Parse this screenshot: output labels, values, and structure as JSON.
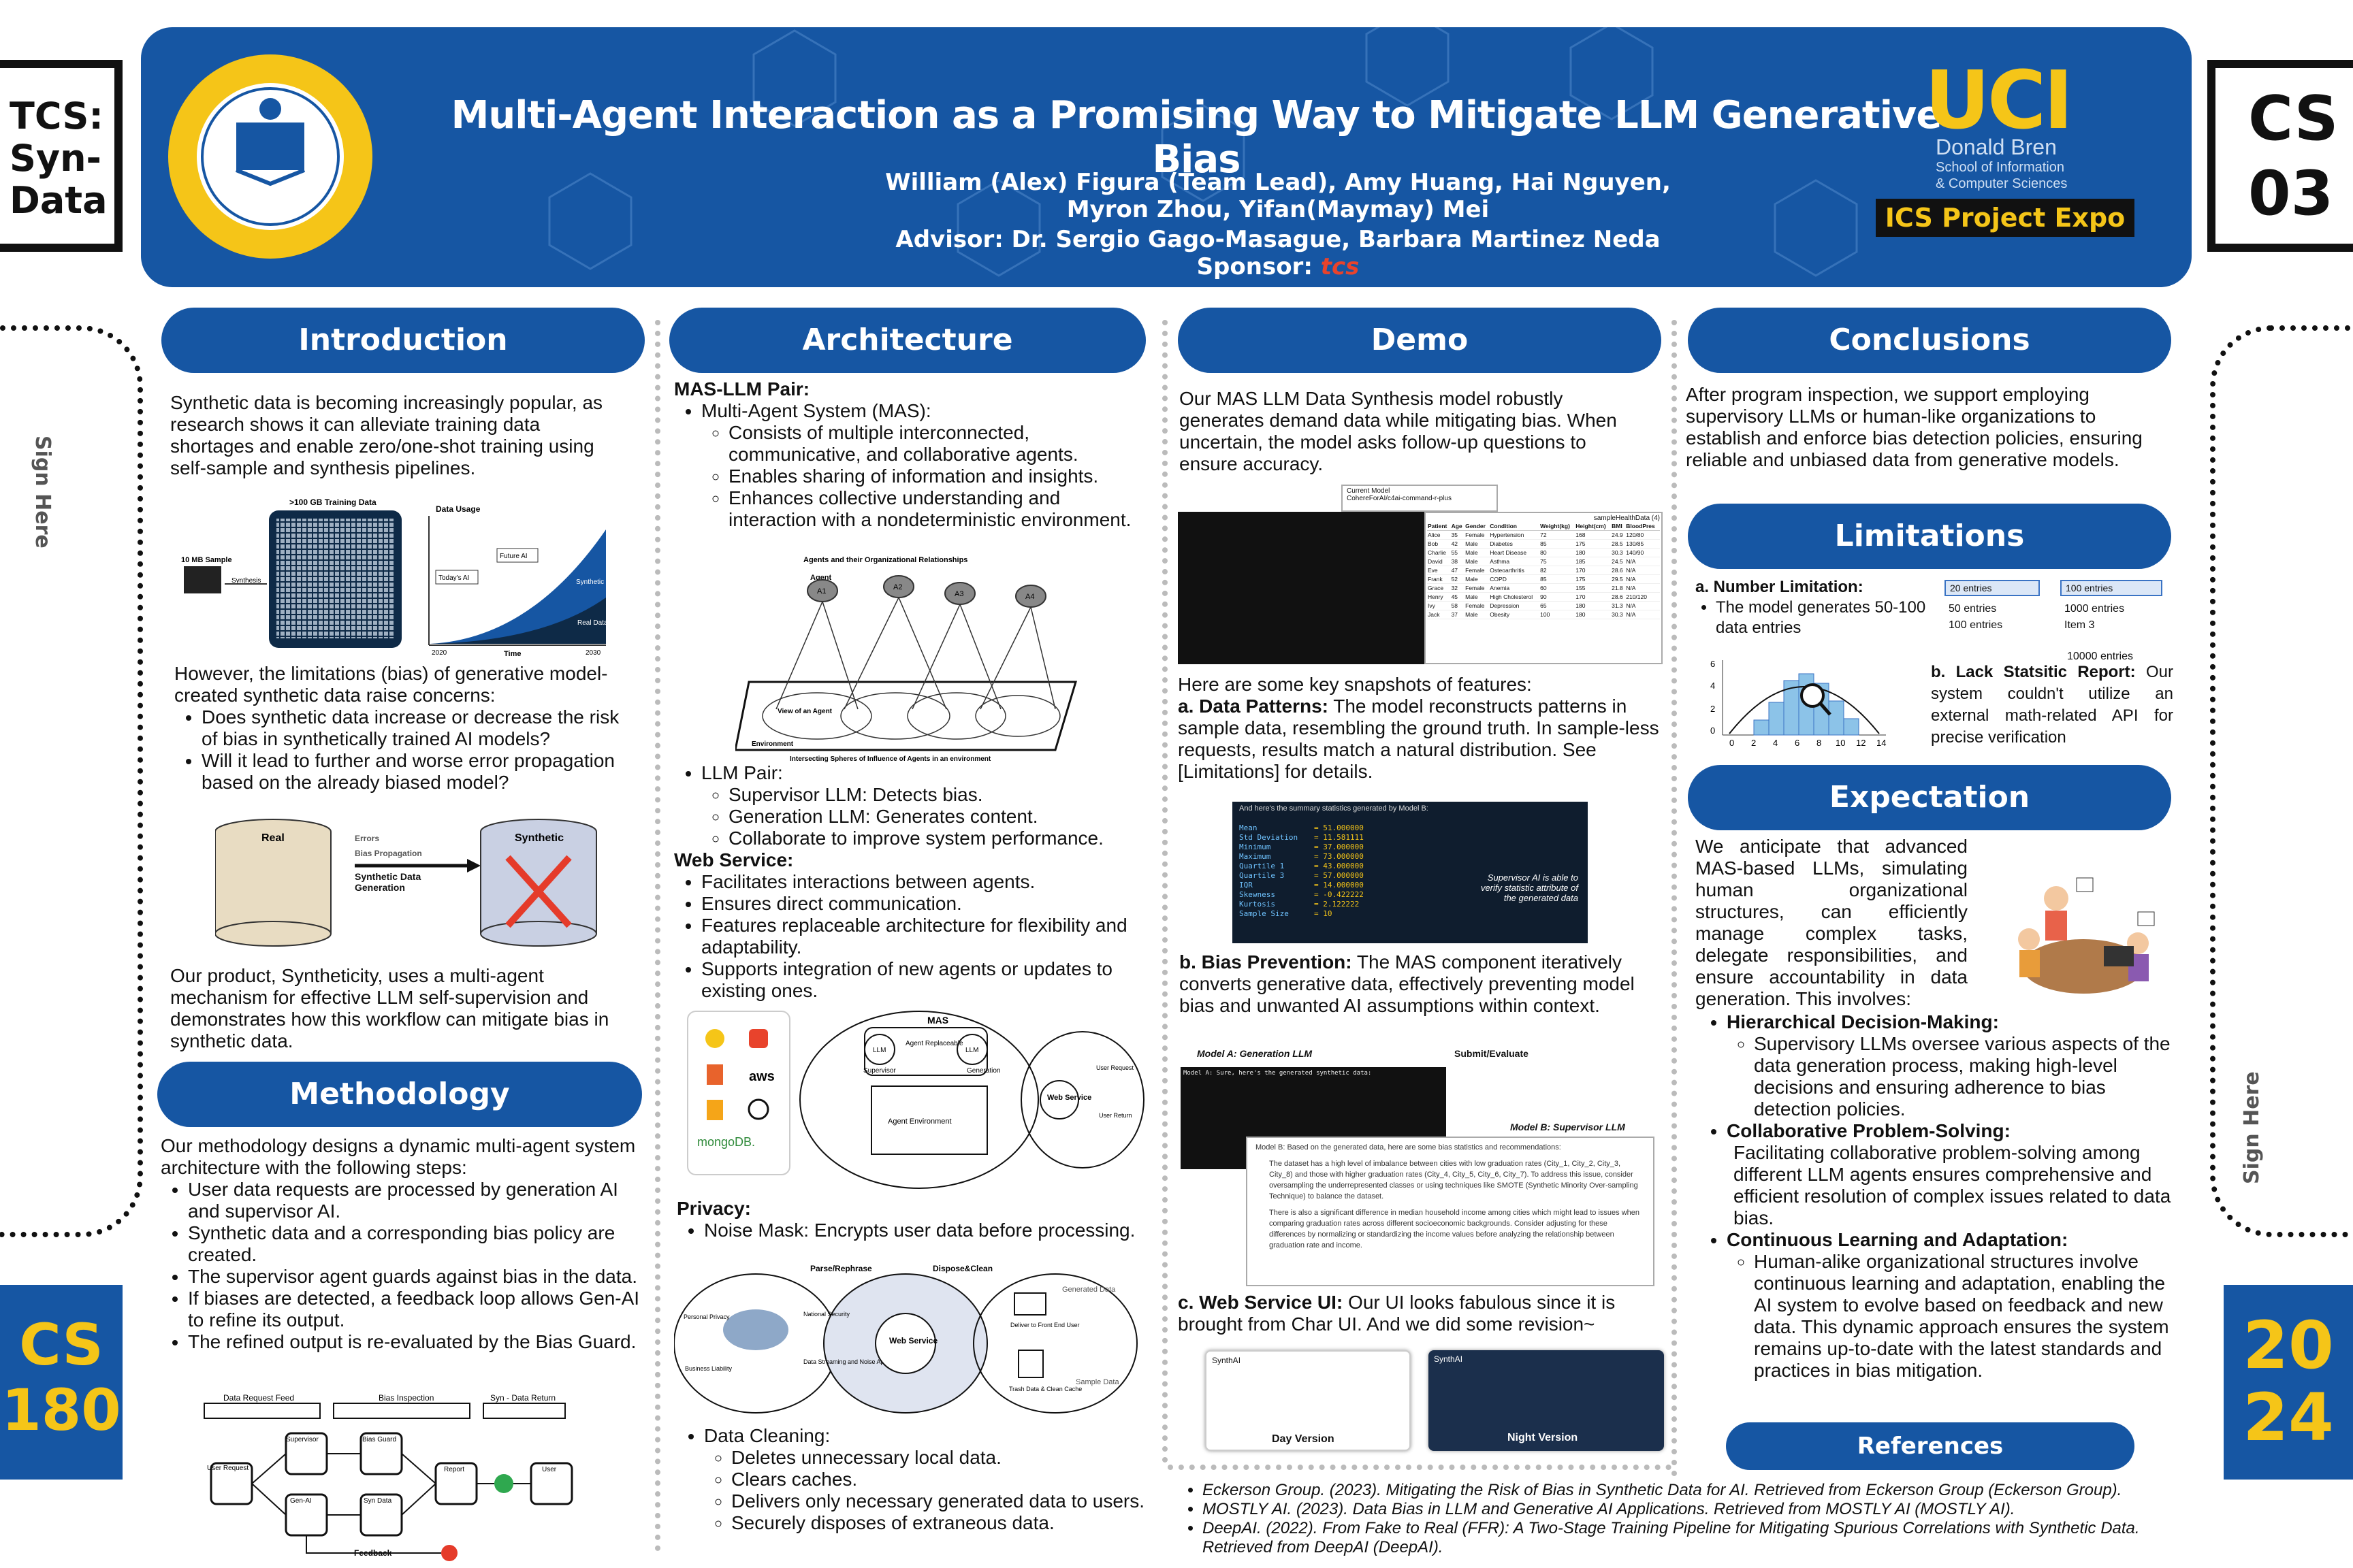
{
  "header": {
    "title": "Multi-Agent Interaction as a Promising Way to Mitigate LLM Generative Bias",
    "authors": "William (Alex) Figura (Team Lead), Amy Huang, Hai Nguyen, Myron Zhou, Yifan(Maymay) Mei",
    "advisor": "Advisor: Dr. Sergio Gago-Masague, Barbara Martinez Neda",
    "sponsor_label": "Sponsor:",
    "sponsor_logo": "tcs",
    "uci": "UCI",
    "school_line1": "Donald Bren",
    "school_line2": "School of Information",
    "school_line3": "& Computer Sciences",
    "expo": "ICS Project Expo"
  },
  "corners": {
    "left_top": [
      "TCS:",
      "Syn-",
      "Data"
    ],
    "right_top": [
      "CS",
      "03"
    ],
    "left_bottom": [
      "CS",
      "180"
    ],
    "right_bottom": [
      "20",
      "24"
    ],
    "sign_here": "Sign Here"
  },
  "sections": {
    "introduction": "Introduction",
    "architecture": "Architecture",
    "demo": "Demo",
    "conclusions": "Conclusions",
    "methodology": "Methodology",
    "limitations": "Limitations",
    "expectation": "Expectation",
    "references": "References"
  },
  "intro": {
    "p1": "Synthetic data is becoming increasingly popular, as research shows it can alleviate training data shortages and enable zero/one-shot training using self-sample and synthesis pipelines.",
    "fig_labels": {
      "a": ">100 GB Training Data",
      "b": "10 MB Sample",
      "c": "Synthesis",
      "d": "Data Usage",
      "e": "Future AI",
      "f": "Today's AI",
      "g": "Synthetic Data",
      "h": "Real Data",
      "i": "2020",
      "j": "Time",
      "k": "2030"
    },
    "p2": "However, the limitations (bias) of generative model-created synthetic data raise concerns:",
    "bullets": [
      "Does synthetic data increase or decrease the risk of bias in synthetically trained AI models?",
      "Will it lead to further and worse error propagation based on the already biased model?"
    ],
    "fig2": {
      "real": "Real",
      "errors": "Errors",
      "bias": "Bias Propagation",
      "synth_gen": "Synthetic Data Generation",
      "synthetic": "Synthetic"
    },
    "p3": "Our product, Syntheticity, uses a multi-agent mechanism for effective LLM self-supervision and demonstrates how this workflow can mitigate bias in synthetic data."
  },
  "method": {
    "p1": "Our methodology designs a dynamic multi-agent system architecture with the following steps:",
    "bullets": [
      "User data requests are processed by generation AI and supervisor AI.",
      "Synthetic data and a corresponding bias policy are created.",
      "The supervisor agent guards against bias in the data.",
      "If biases are detected, a feedback loop allows Gen-AI to refine its output.",
      "The refined output is re-evaluated by the Bias Guard."
    ],
    "flow": {
      "a": "Data Request Feed",
      "b": "Bias Inspection",
      "c": "Syn - Data Return",
      "d": "Supervisor",
      "e": "Bias Guard",
      "f": "Report",
      "g": "User",
      "h": "Gen-AI",
      "i": "Syn Data",
      "j": "Feedback",
      "k": "User Request"
    }
  },
  "arch": {
    "mas_llm": "MAS-LLM Pair:",
    "mas": "Multi-Agent System (MAS):",
    "mas_sub": [
      "Consists of multiple interconnected, communicative, and collaborative agents.",
      "Enables sharing of information and insights.",
      "Enhances collective understanding and interaction with a nondeterministic environment."
    ],
    "agent_fig": {
      "title": "Agents and their Organizational Relationships",
      "agent": "Agent",
      "a1": "A1",
      "a2": "A2",
      "a3": "A3",
      "a4": "A4",
      "view": "View of an Agent",
      "env": "Environment",
      "caption": "Intersecting Spheres of Influence of Agents in an environment"
    },
    "llm_pair": "LLM Pair:",
    "llm_sub": [
      "Supervisor LLM: Detects bias.",
      "Generation LLM: Generates content.",
      "Collaborate to improve system performance."
    ],
    "web": "Web Service:",
    "web_items": [
      "Facilitates interactions between agents.",
      "Ensures direct communication.",
      "Features replaceable architecture for flexibility and adaptability.",
      "Supports integration of new agents or updates to existing ones."
    ],
    "tech_fig": {
      "aws": "aws",
      "mongo": "mongoDB.",
      "mas": "MAS",
      "llm": "LLM",
      "agent_repl": "Agent Replaceable",
      "supervisor": "Supervisor",
      "generation": "Generation",
      "agent_env": "Agent Environment",
      "web": "Web Service",
      "user_req": "User Request",
      "user_return": "User Return"
    },
    "privacy": "Privacy:",
    "privacy_items": [
      "Noise Mask: Encrypts user data before processing."
    ],
    "priv_fig": {
      "parse": "Parse/Rephrase",
      "dispose": "Dispose&Clean",
      "web": "Web Service",
      "personal": "Personal Privacy",
      "business": "Business Liability",
      "national": "National Security",
      "data_str": "Data Streaming and Noise Application",
      "gen": "Generated Data",
      "deliver": "Deliver to Front End User",
      "trash": "Trash Data & Clean Cache",
      "sample": "Sample Data"
    },
    "cleaning": "Data Cleaning:",
    "cleaning_items": [
      "Deletes unnecessary local data.",
      "Clears caches.",
      "Delivers only necessary generated data to users.",
      "Securely disposes of extraneous data."
    ]
  },
  "demo": {
    "p1": "Our MAS LLM Data Synthesis model robustly generates demand data while mitigating bias. When uncertain, the model asks follow-up questions to ensure accuracy.",
    "shot1": {
      "model_label": "Current Model",
      "model": "CohereForAI/c4ai-command-r-plus",
      "table_title": "sampleHealthData (4)",
      "cols": [
        "Patient",
        "Age",
        "Gender",
        "Condition",
        "Weight(kg)",
        "Height(cm)",
        "BMI",
        "BloodPres"
      ],
      "rows": [
        [
          "Alice",
          "35",
          "Female",
          "Hypertension",
          "72",
          "168",
          "24.9",
          "120/80"
        ],
        [
          "Bob",
          "42",
          "Male",
          "Diabetes",
          "85",
          "175",
          "28.5",
          "130/85"
        ],
        [
          "Charlie",
          "55",
          "Male",
          "Heart Disease",
          "80",
          "180",
          "30.3",
          "140/90"
        ],
        [
          "David",
          "38",
          "Male",
          "Asthma",
          "75",
          "185",
          "24.5",
          "N/A"
        ],
        [
          "Eve",
          "47",
          "Female",
          "Osteoarthritis",
          "82",
          "170",
          "28.6",
          "N/A"
        ],
        [
          "Frank",
          "52",
          "Male",
          "COPD",
          "85",
          "175",
          "29.5",
          "N/A"
        ],
        [
          "Grace",
          "32",
          "Female",
          "Anemia",
          "60",
          "155",
          "21.8",
          "N/A"
        ],
        [
          "Henry",
          "45",
          "Male",
          "High Cholesterol",
          "90",
          "170",
          "28.6",
          "210/120"
        ],
        [
          "Ivy",
          "58",
          "Female",
          "Depression",
          "65",
          "180",
          "31.3",
          "N/A"
        ],
        [
          "Jack",
          "37",
          "Male",
          "Obesity",
          "100",
          "180",
          "30.3",
          "N/A"
        ]
      ]
    },
    "snapshots": "Here are some key snapshots of features:",
    "a_head": "a. Data Patterns:",
    "a_text": "The model reconstructs patterns in sample data, resembling the ground truth. In sample-less requests, results match a natural distribution. See [Limitations] for details.",
    "stats": {
      "title": "And here's the summary statistics generated by Model B:",
      "rows": [
        [
          "Mean",
          "51.000000"
        ],
        [
          "Std Deviation",
          "11.581111"
        ],
        [
          "Minimum",
          "37.000000"
        ],
        [
          "Maximum",
          "73.000000"
        ],
        [
          "Quartile 1",
          "43.000000"
        ],
        [
          "Quartile 3",
          "57.000000"
        ],
        [
          "IQR",
          "14.000000"
        ],
        [
          "Skewness",
          "-0.422222"
        ],
        [
          "Kurtosis",
          "2.122222"
        ],
        [
          "Sample Size",
          "10"
        ]
      ],
      "note": "Supervisor AI is able to verify statistic attribute of the generated data"
    },
    "b_head": "b. Bias Prevention:",
    "b_text": "The MAS component iteratively converts generative data, effectively preventing model bias and unwanted AI assumptions within context.",
    "bias_fig": {
      "model_a": "Model A: Generation LLM",
      "submit": "Submit/Evaluate",
      "model_b": "Model B: Supervisor LLM",
      "gen_title": "Model A: Sure, here's the generated synthetic data:",
      "review": "Model B: Based on the generated data, here are some bias statistics and recommendations:",
      "r1": "The dataset has a high level of imbalance between cities with low graduation rates (City_1, City_2, City_3, City_8) and those with higher graduation rates (City_4, City_5, City_6, City_7). To address this issue, consider oversampling the underrepresented classes or using techniques like SMOTE (Synthetic Minority Over-sampling Technique) to balance the dataset.",
      "r2": "There is also a significant difference in median household income among cities which might lead to issues when comparing graduation rates across different socioeconomic backgrounds. Consider adjusting for these differences by normalizing or standardizing the income values before analyzing the relationship between graduation rate and income."
    },
    "c_head": "c. Web Service UI:",
    "c_text": "Our UI looks fabulous since it is brought from Char UI. And we did some revision~",
    "day": "Day Version",
    "night": "Night Version",
    "app": "SynthAI"
  },
  "conclusions": {
    "p1": "After program inspection, we support employing supervisory LLMs or human-like organizations to establish and enforce bias detection policies, ensuring reliable and unbiased data from generative models."
  },
  "limitations": {
    "a_head": "a. Number Limitation:",
    "a_items": [
      "The model generates 50-100 data entries"
    ],
    "boxes": [
      "20 entries",
      "100 entries",
      "50 entries",
      "1000 entries",
      "100 entries",
      "Item 3"
    ],
    "big": "10000 entries",
    "b_head": "b. Lack Statsitic Report:",
    "b_text": "Our system couldn't utilize an external math-related API for precise verification",
    "chart_yticks": [
      "6",
      "4",
      "2",
      "0"
    ],
    "chart_xticks": [
      "0",
      "2",
      "4",
      "6",
      "8",
      "10",
      "12",
      "14"
    ]
  },
  "expectation": {
    "p1": "We anticipate that advanced MAS-based LLMs, simulating human organizational structures, can efficiently manage complex tasks, delegate responsibilities, and ensure accountability in data generation. This involves:",
    "items": [
      {
        "head": "Hierarchical Decision-Making:",
        "sub": "Supervisory LLMs oversee various aspects of the data generation process, making high-level decisions and ensuring adherence to bias detection policies."
      },
      {
        "head": "Collaborative Problem-Solving:",
        "sub": "Facilitating collaborative problem-solving among different LLM agents ensures comprehensive and efficient resolution of complex issues related to data bias."
      },
      {
        "head": "Continuous Learning and Adaptation:",
        "sub": "Human-alike organizational structures involve continuous learning and adaptation, enabling the AI system to evolve based on feedback and new data. This dynamic approach ensures the system remains up-to-date with the latest standards and practices in bias mitigation."
      }
    ]
  },
  "references": [
    "Eckerson Group. (2023). Mitigating the Risk of Bias in Synthetic Data for AI. Retrieved from Eckerson Group (Eckerson Group).",
    "MOSTLY AI. (2023). Data Bias in LLM and Generative AI Applications. Retrieved from MOSTLY AI (MOSTLY AI).",
    "DeepAI. (2022). From Fake to Real (FFR): A Two-Stage Training Pipeline for Mitigating Spurious Correlations with Synthetic Data. Retrieved from DeepAI (DeepAI)."
  ],
  "colors": {
    "primary": "#1656a3",
    "accent": "#f5c518"
  }
}
